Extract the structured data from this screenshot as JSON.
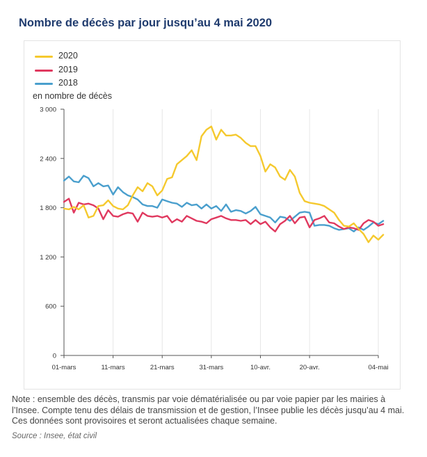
{
  "title": "Nombre de décès par jour jusqu’au 4 mai 2020",
  "colors": {
    "title": "#1f3b6e",
    "2020": "#f5c92e",
    "2019": "#e0395f",
    "2018": "#4a9fcd",
    "grid": "#e6e6e6",
    "axis": "#555555"
  },
  "chart_data": {
    "type": "line",
    "ylabel": "en nombre de décès",
    "ylim": [
      0,
      3000
    ],
    "yticks": [
      "3 000",
      "2 400",
      "1 800",
      "1 200",
      "600",
      "0"
    ],
    "ytick_values": [
      3000,
      2400,
      1800,
      1200,
      600,
      0
    ],
    "xticks": [
      "01-mars",
      "11-mars",
      "21-mars",
      "31-mars",
      "10-avr.",
      "20-avr.",
      "04-mai"
    ],
    "xtick_days": [
      0,
      10,
      20,
      30,
      40,
      50,
      64
    ],
    "x_start": "01-mars",
    "x_end": "04-mai",
    "grid": "vertical",
    "legend_position": "top-left",
    "series": [
      {
        "name": "2020",
        "color": "#f5c92e",
        "values": [
          1790,
          1780,
          1810,
          1780,
          1830,
          1680,
          1700,
          1820,
          1830,
          1890,
          1820,
          1790,
          1780,
          1830,
          1950,
          2050,
          2000,
          2100,
          2060,
          1950,
          2010,
          2150,
          2170,
          2330,
          2380,
          2430,
          2500,
          2380,
          2670,
          2750,
          2790,
          2630,
          2750,
          2680,
          2680,
          2690,
          2650,
          2590,
          2550,
          2550,
          2430,
          2240,
          2330,
          2290,
          2180,
          2140,
          2260,
          2180,
          1980,
          1880,
          1860,
          1850,
          1840,
          1820,
          1780,
          1740,
          1650,
          1580,
          1570,
          1610,
          1540,
          1480,
          1380,
          1460,
          1410,
          1470
        ]
      },
      {
        "name": "2019",
        "color": "#e0395f",
        "values": [
          1870,
          1910,
          1740,
          1860,
          1840,
          1850,
          1830,
          1790,
          1660,
          1770,
          1700,
          1690,
          1720,
          1740,
          1730,
          1630,
          1740,
          1700,
          1690,
          1700,
          1680,
          1700,
          1620,
          1660,
          1630,
          1700,
          1670,
          1640,
          1630,
          1610,
          1660,
          1680,
          1700,
          1670,
          1650,
          1650,
          1640,
          1650,
          1600,
          1650,
          1600,
          1630,
          1560,
          1510,
          1600,
          1640,
          1700,
          1610,
          1680,
          1690,
          1560,
          1650,
          1670,
          1700,
          1620,
          1610,
          1570,
          1540,
          1560,
          1550,
          1530,
          1610,
          1650,
          1630,
          1580,
          1600
        ]
      },
      {
        "name": "2018",
        "color": "#4a9fcd",
        "values": [
          2130,
          2180,
          2120,
          2110,
          2190,
          2160,
          2060,
          2100,
          2060,
          2070,
          1960,
          2050,
          1990,
          1950,
          1930,
          1900,
          1840,
          1820,
          1820,
          1800,
          1900,
          1880,
          1860,
          1850,
          1810,
          1860,
          1830,
          1840,
          1790,
          1840,
          1790,
          1820,
          1760,
          1840,
          1750,
          1770,
          1760,
          1730,
          1760,
          1810,
          1720,
          1700,
          1680,
          1620,
          1690,
          1680,
          1640,
          1690,
          1740,
          1750,
          1740,
          1580,
          1590,
          1590,
          1580,
          1550,
          1530,
          1540,
          1550,
          1510,
          1560,
          1530,
          1570,
          1620,
          1600,
          1640
        ]
      }
    ]
  },
  "note": "Note : ensemble des décès, transmis par voie dématérialisée ou par voie papier par les mairies à l’Insee. Compte tenu des délais de transmission et de gestion, l’Insee publie les décès jusqu’au 4 mai. Ces données sont provisoires et seront actualisées chaque semaine.",
  "source": "Source : Insee, état civil"
}
